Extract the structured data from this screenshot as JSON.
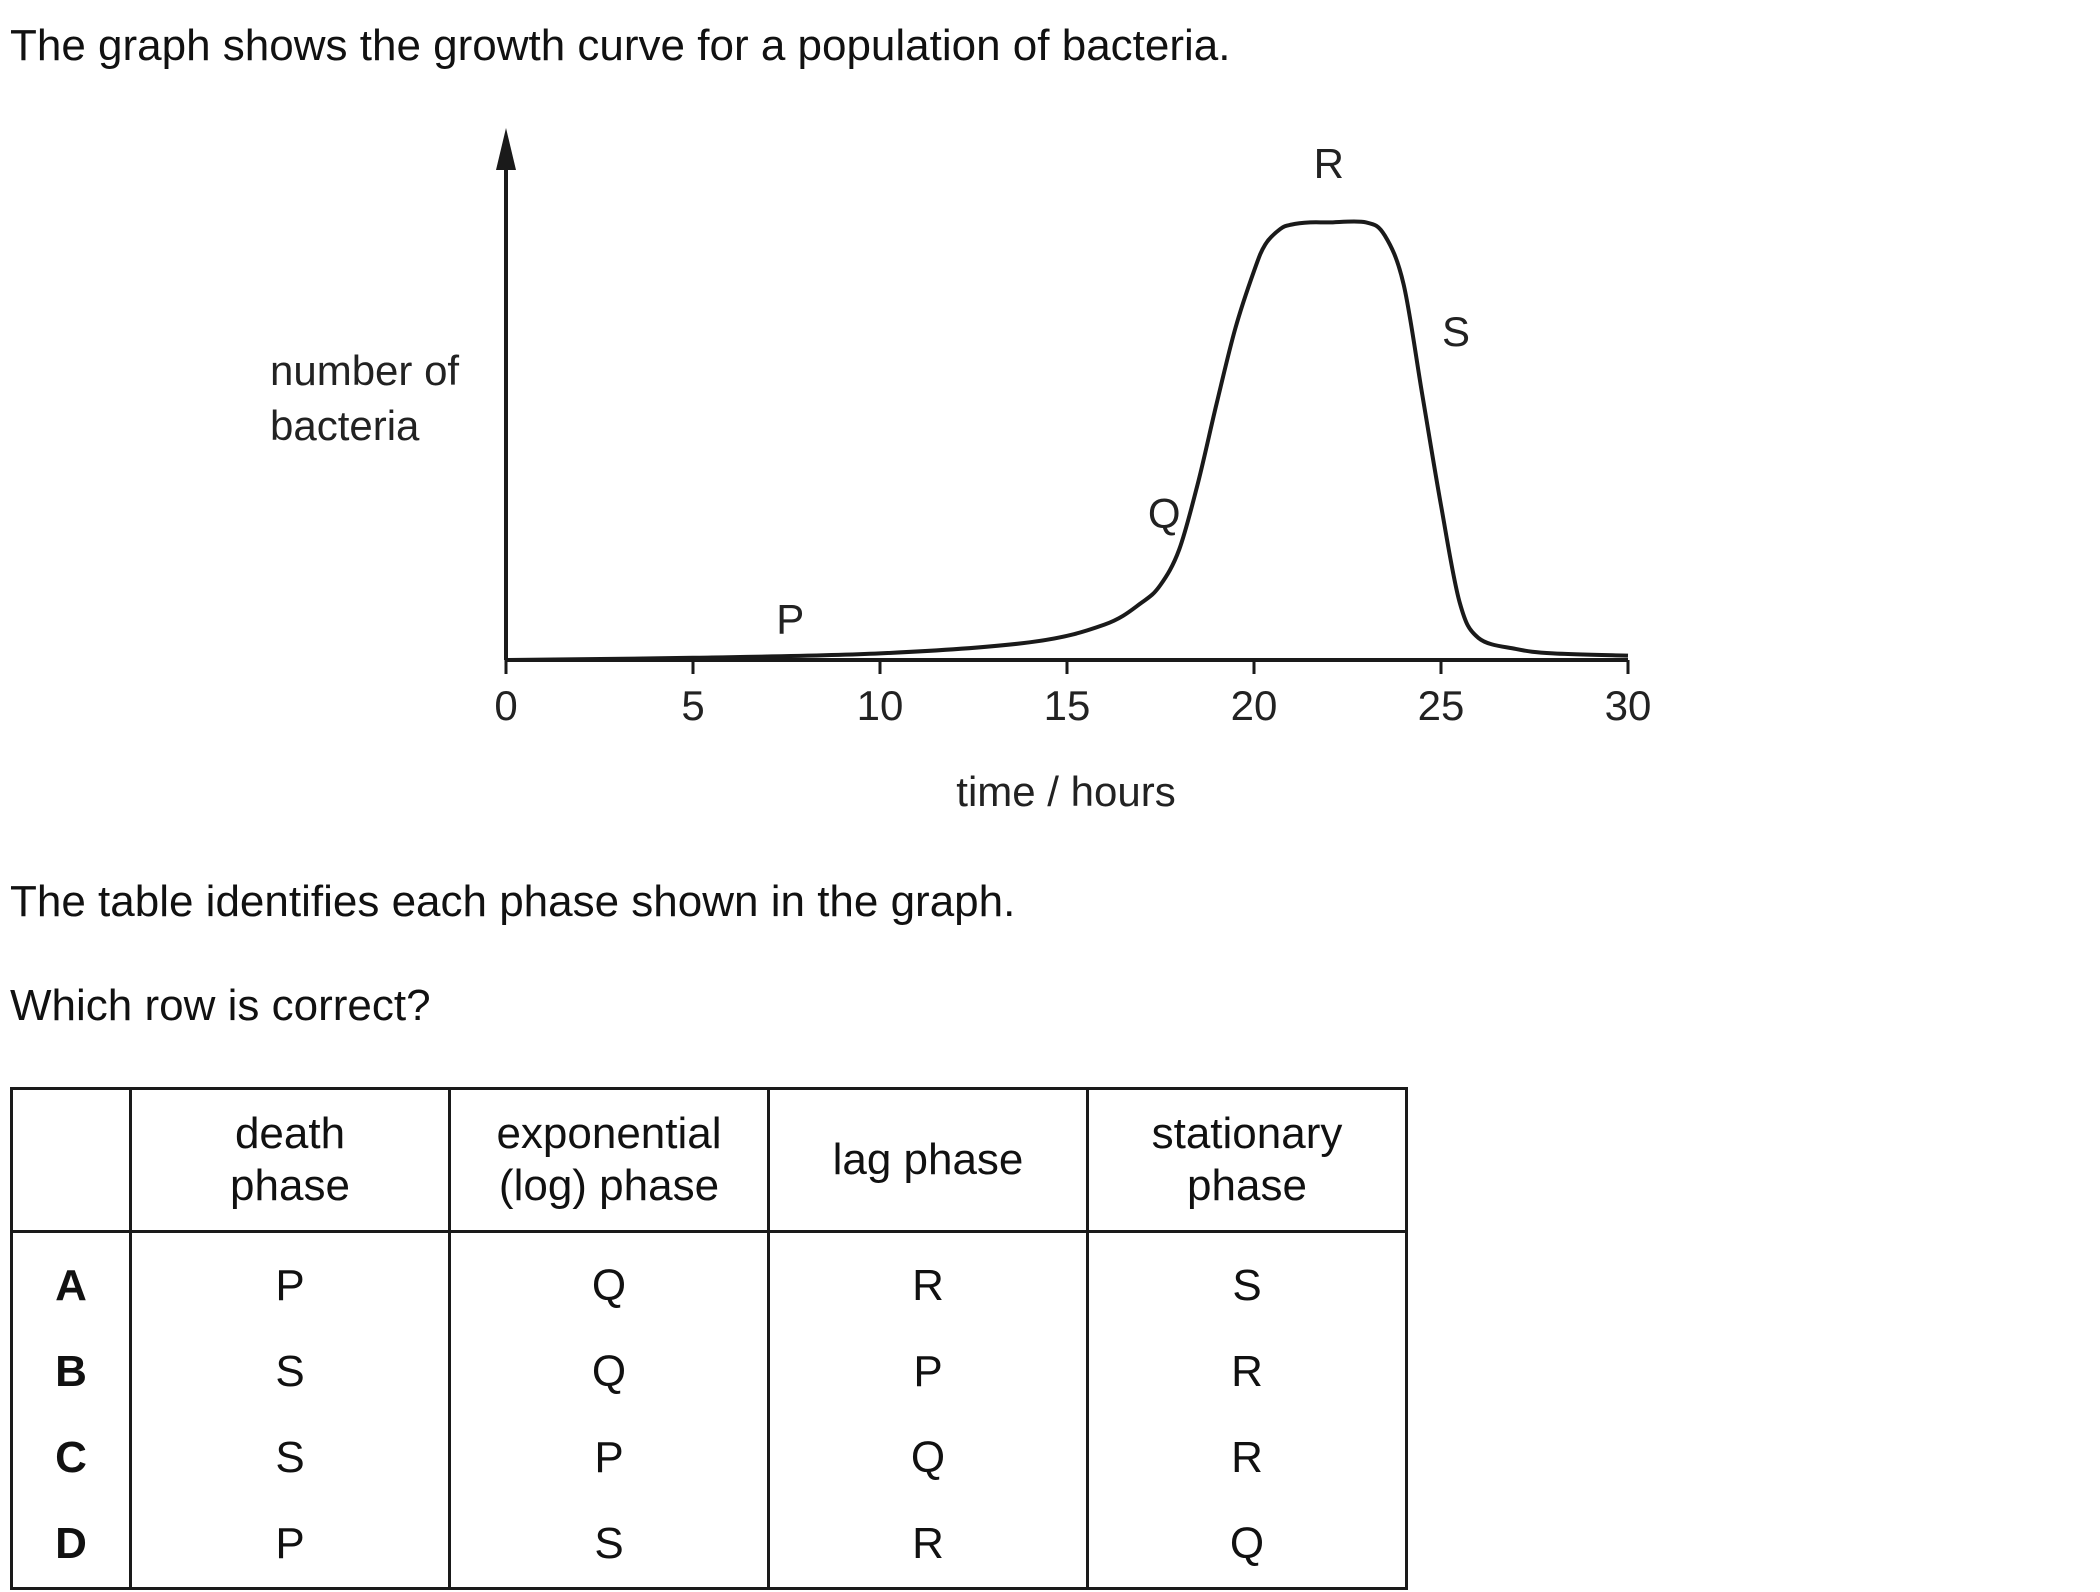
{
  "intro": "The graph shows the growth curve for a population of bacteria.",
  "table_intro": "The table identifies each phase shown in the graph.",
  "question": "Which row is correct?",
  "chart_data": {
    "type": "line",
    "ylabel_lines": [
      "number of",
      "bacteria"
    ],
    "xlabel": "time / hours",
    "x_ticks": [
      "0",
      "5",
      "10",
      "15",
      "20",
      "25",
      "30"
    ],
    "xlim": [
      0,
      30
    ],
    "ylim": [
      0,
      1
    ],
    "grid": false,
    "series": [
      {
        "x": [
          0,
          5,
          10,
          14,
          16,
          17,
          17.5,
          18,
          18.5,
          19,
          19.5,
          20,
          20.3,
          20.7,
          21,
          21.5,
          22,
          23,
          23.5,
          24,
          24.5,
          25,
          25.5,
          26,
          27,
          28,
          30
        ],
        "y": [
          0.0,
          0.005,
          0.015,
          0.04,
          0.08,
          0.13,
          0.17,
          0.25,
          0.4,
          0.58,
          0.75,
          0.88,
          0.94,
          0.975,
          0.985,
          0.99,
          0.99,
          0.99,
          0.96,
          0.85,
          0.6,
          0.35,
          0.13,
          0.05,
          0.025,
          0.015,
          0.01
        ]
      }
    ],
    "annotations": [
      {
        "label": "P",
        "x": 7.6,
        "y": 0.06
      },
      {
        "label": "Q",
        "x": 17.6,
        "y": 0.3
      },
      {
        "label": "R",
        "x": 22.0,
        "y": 1.09
      },
      {
        "label": "S",
        "x": 25.4,
        "y": 0.71
      }
    ]
  },
  "table": {
    "headers": [
      "",
      [
        "death",
        "phase"
      ],
      [
        "exponential",
        "(log) phase"
      ],
      [
        "lag phase"
      ],
      [
        "stationary",
        "phase"
      ]
    ],
    "rows": [
      {
        "label": "A",
        "cells": [
          "P",
          "Q",
          "R",
          "S"
        ]
      },
      {
        "label": "B",
        "cells": [
          "S",
          "Q",
          "P",
          "R"
        ]
      },
      {
        "label": "C",
        "cells": [
          "S",
          "P",
          "Q",
          "R"
        ]
      },
      {
        "label": "D",
        "cells": [
          "P",
          "S",
          "R",
          "Q"
        ]
      }
    ]
  }
}
